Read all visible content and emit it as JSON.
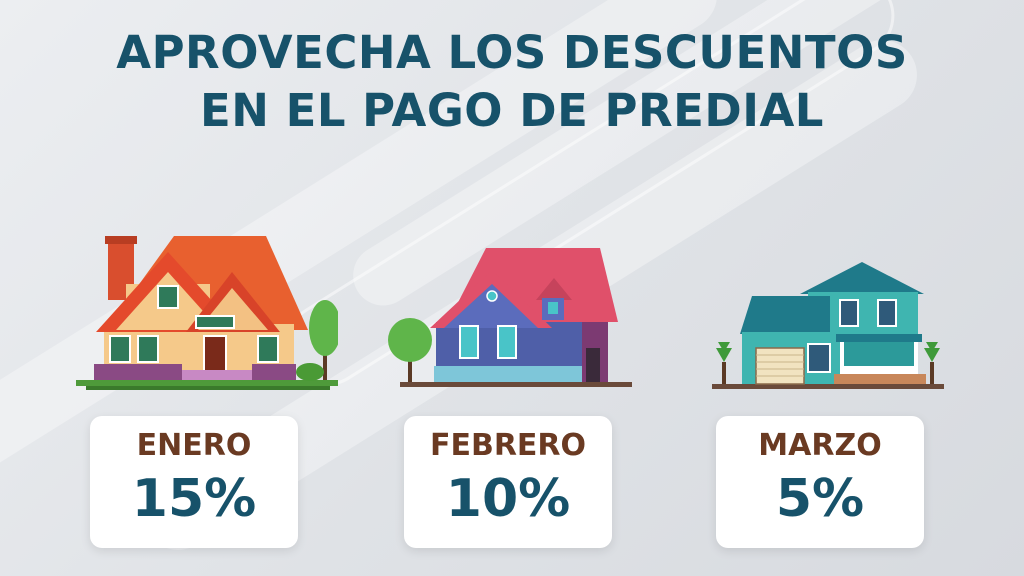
{
  "title": {
    "line1": "APROVECHA LOS DESCUENTOS",
    "line2": "EN EL PAGO DE PREDIAL"
  },
  "offers": [
    {
      "month": "ENERO",
      "discount": "15%",
      "house_icon": "orange-house-icon"
    },
    {
      "month": "FEBRERO",
      "discount": "10%",
      "house_icon": "blue-house-icon"
    },
    {
      "month": "MARZO",
      "discount": "5%",
      "house_icon": "teal-house-icon"
    }
  ],
  "colors": {
    "title": "#17526a",
    "month": "#6a3a22",
    "percent": "#17526a",
    "card": "#ffffff",
    "background": "#e3e6ea"
  }
}
